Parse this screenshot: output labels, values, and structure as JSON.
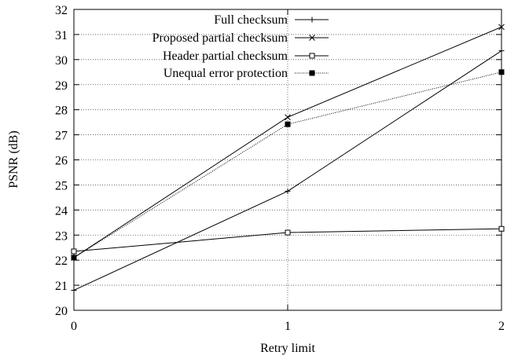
{
  "chart_data": {
    "type": "line",
    "xlabel": "Retry limit",
    "ylabel": "PSNR (dB)",
    "xlim": [
      0,
      2
    ],
    "ylim": [
      20,
      32
    ],
    "x": [
      0,
      1,
      2
    ],
    "xticks": [
      "0",
      "1",
      "2"
    ],
    "yticks": [
      "20",
      "21",
      "22",
      "23",
      "24",
      "25",
      "26",
      "27",
      "28",
      "29",
      "30",
      "31",
      "32"
    ],
    "grid": true,
    "legend_position": "top-right",
    "series": [
      {
        "name": "Full checksum",
        "values": [
          20.8,
          24.75,
          30.35
        ],
        "marker": "plus",
        "line": "solid"
      },
      {
        "name": "Proposed partial checksum",
        "values": [
          22.1,
          27.7,
          31.3
        ],
        "marker": "cross",
        "line": "solid"
      },
      {
        "name": "Header partial checksum",
        "values": [
          22.35,
          23.1,
          23.25
        ],
        "marker": "open-square",
        "line": "solid"
      },
      {
        "name": "Unequal error protection",
        "values": [
          22.1,
          27.42,
          29.5
        ],
        "marker": "filled-square",
        "line": "dotted"
      }
    ]
  }
}
